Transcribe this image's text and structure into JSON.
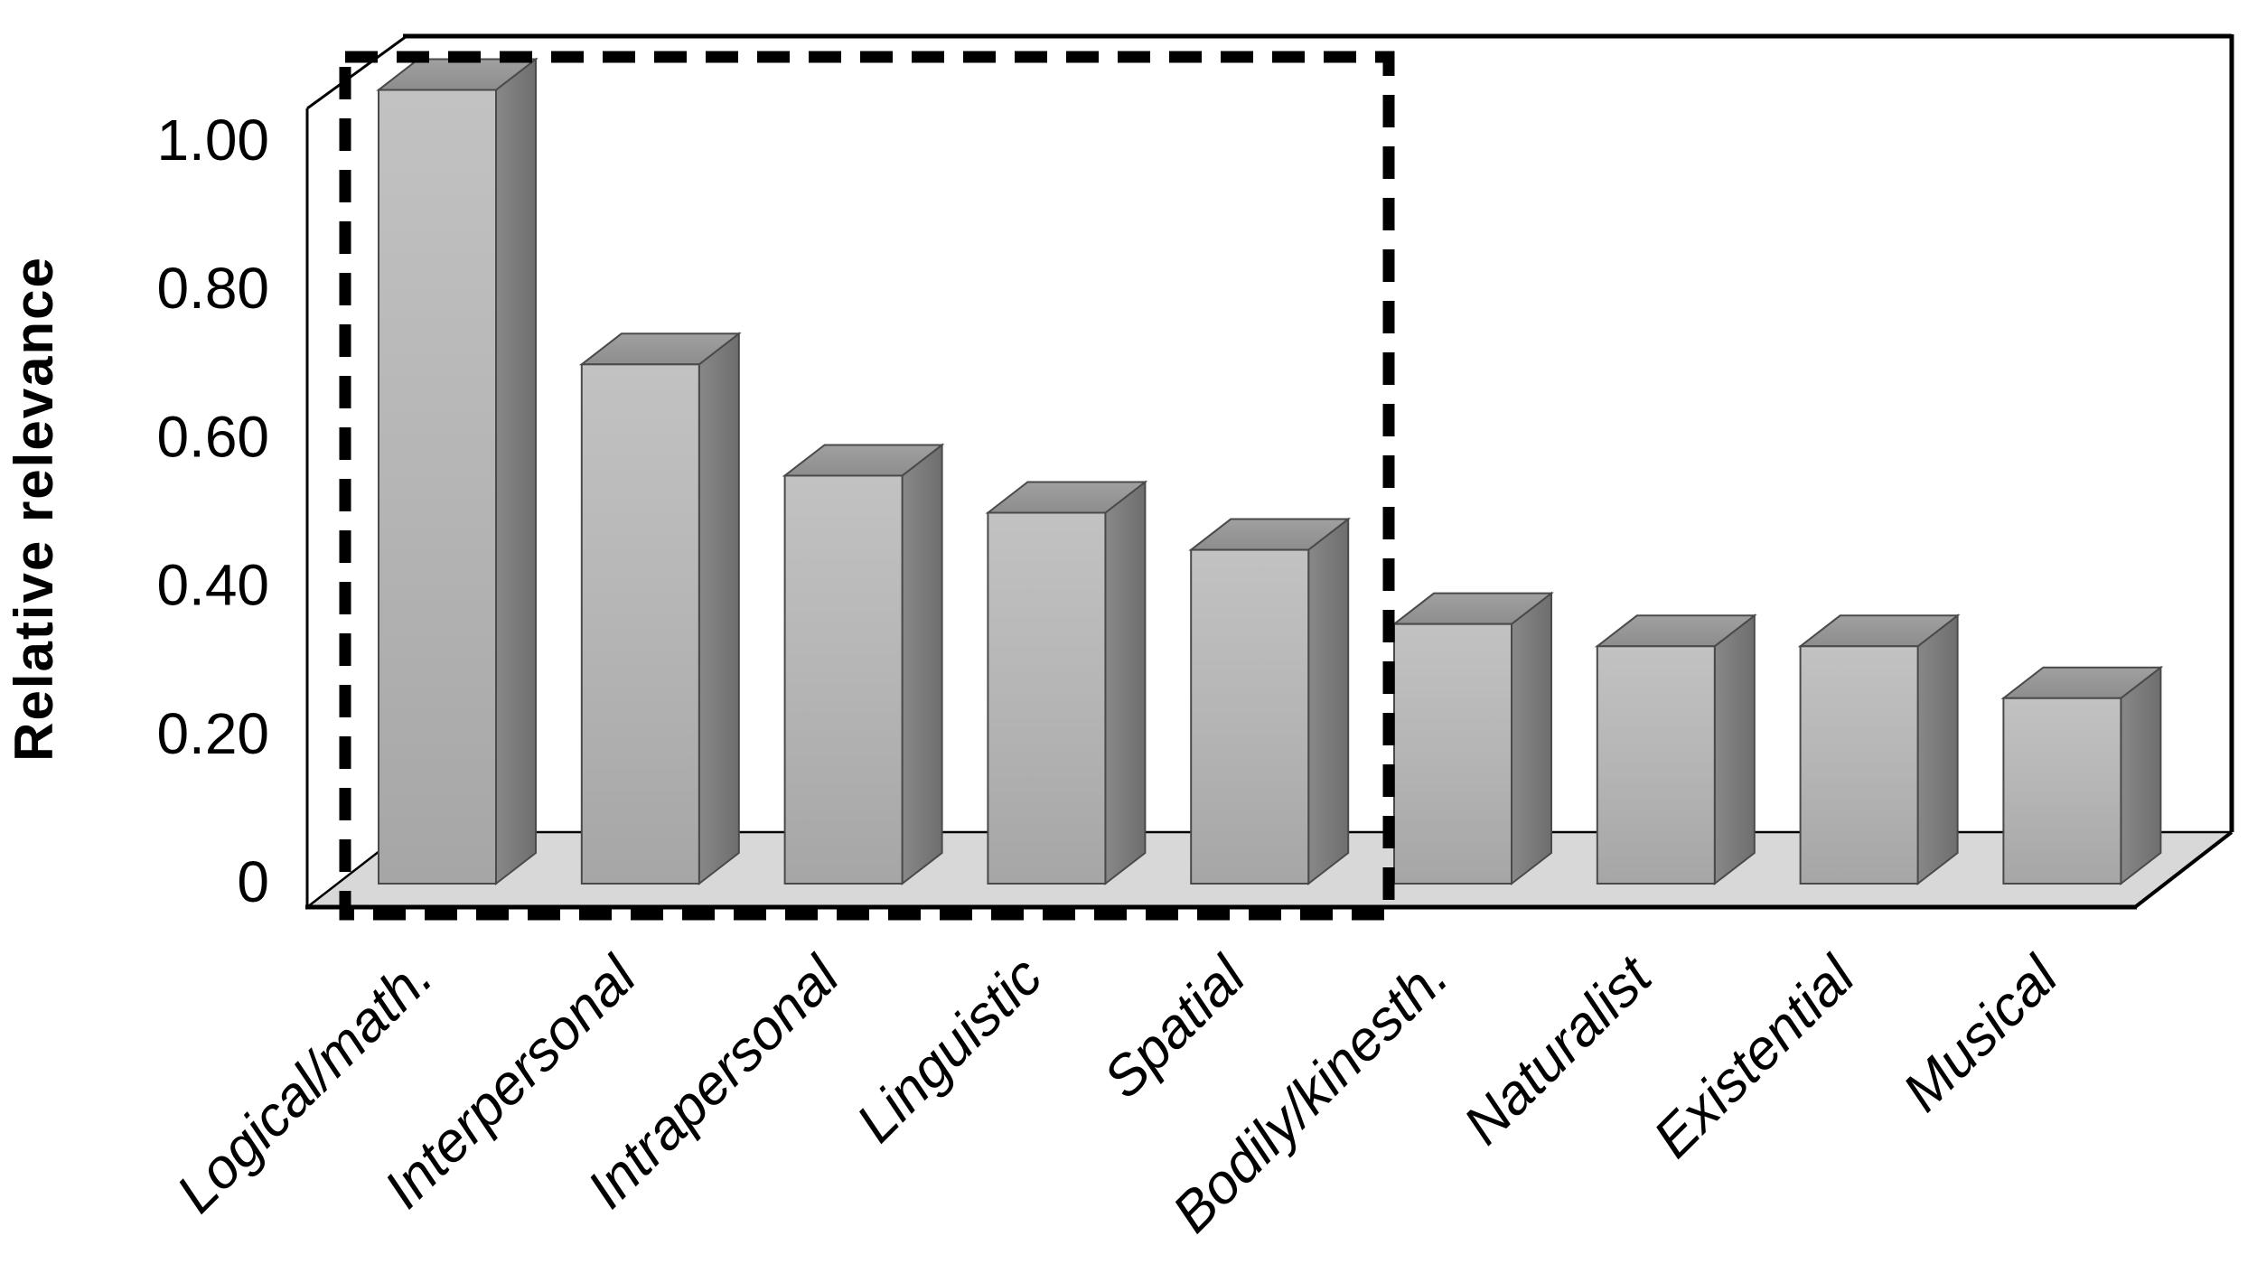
{
  "chart_data": {
    "type": "bar",
    "title": "",
    "ylabel": "Relative relevance",
    "xlabel": "",
    "categories": [
      "Logical/math.",
      "Interpersonal",
      "Intrapersonal",
      "Linguistic",
      "Spatial",
      "Bodily/kinesth.",
      "Naturalist",
      "Existential",
      "Musical"
    ],
    "values": [
      1.07,
      0.7,
      0.55,
      0.5,
      0.45,
      0.35,
      0.32,
      0.32,
      0.25
    ],
    "yticks": [
      {
        "label": "1.00",
        "value": 1.0
      },
      {
        "label": "0.80",
        "value": 0.8
      },
      {
        "label": "0.60",
        "value": 0.6
      },
      {
        "label": "0.40",
        "value": 0.4
      },
      {
        "label": "0.20",
        "value": 0.2
      },
      {
        "label": "0",
        "value": 0.0
      }
    ],
    "ylim": [
      0,
      1.2
    ],
    "grid": false,
    "legend": null,
    "style": "3d-perspective-grayscale-bars",
    "annotations": [
      {
        "type": "dashed-box",
        "purpose": "highlight of the five most relevant intelligences",
        "covers": [
          "Logical/math.",
          "Interpersonal",
          "Intrapersonal",
          "Linguistic",
          "Spatial"
        ]
      }
    ],
    "colors": {
      "bar_front": "#b5b5b5",
      "bar_front_light": "#c2c2c2",
      "bar_front_dark": "#a6a6a6",
      "bar_top": "#a0a0a0",
      "bar_top_dark": "#8d8d8d",
      "bar_side": "#888888",
      "bar_side_dark": "#6e6e6e",
      "bar_outline": "#4a4a4a",
      "floor": "#d8d8d8",
      "axis_line": "#000000",
      "dashed_box": "#000000",
      "text": "#000000",
      "background": "#ffffff"
    }
  }
}
